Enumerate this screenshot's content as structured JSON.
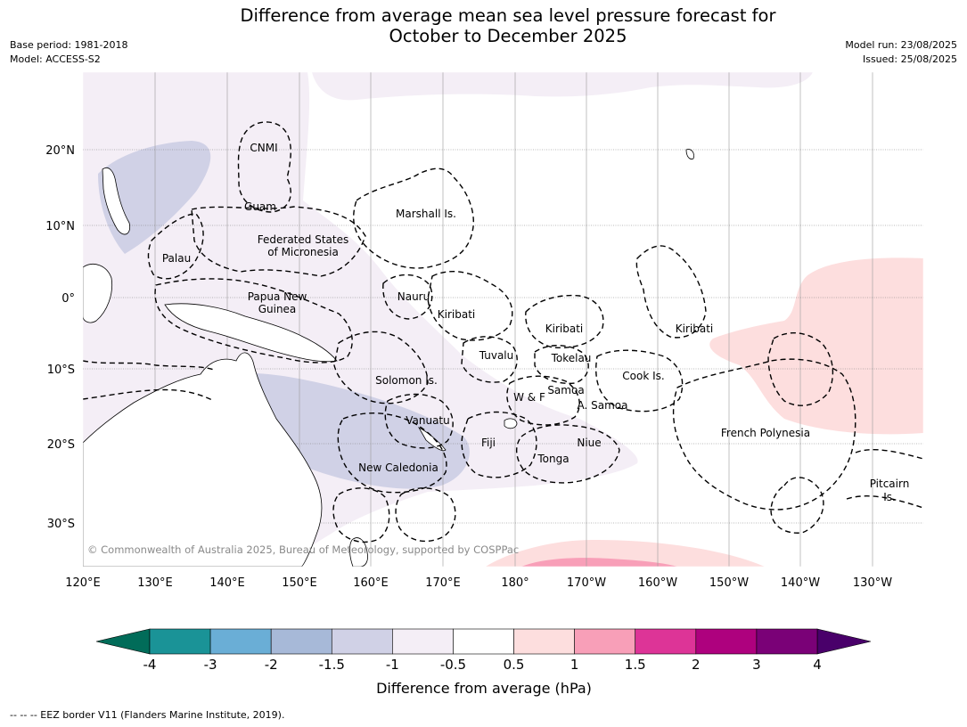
{
  "title": {
    "line1": "Difference from average mean sea level pressure forecast for",
    "line2": "October to December 2025"
  },
  "meta": {
    "base_period": "Base period: 1981-2018",
    "model": "Model: ACCESS-S2",
    "model_run": "Model run: 23/08/2025",
    "issued": "Issued: 25/08/2025"
  },
  "map": {
    "lon_labels": [
      "120°E",
      "130°E",
      "140°E",
      "150°E",
      "160°E",
      "170°E",
      "180°",
      "170°W",
      "160°W",
      "150°W",
      "140°W",
      "130°W"
    ],
    "lat_labels": [
      "20°N",
      "10°N",
      "0°",
      "10°S",
      "20°S",
      "30°S"
    ],
    "region_labels": [
      {
        "text": "CNMI"
      },
      {
        "text": "Guam"
      },
      {
        "text": "Marshall Is."
      },
      {
        "text": "Federated States"
      },
      {
        "text": "of Micronesia"
      },
      {
        "text": "Palau"
      },
      {
        "text": "Papua New"
      },
      {
        "text": "Guinea"
      },
      {
        "text": "Nauru"
      },
      {
        "text": "Kiribati"
      },
      {
        "text": "Kiribati"
      },
      {
        "text": "Kiribati"
      },
      {
        "text": "Tuvalu"
      },
      {
        "text": "Tokelau"
      },
      {
        "text": "Solomon Is."
      },
      {
        "text": "Cook Is."
      },
      {
        "text": "W & F"
      },
      {
        "text": "Samoa"
      },
      {
        "text": "A. Samoa"
      },
      {
        "text": "Vanuatu"
      },
      {
        "text": "Fiji"
      },
      {
        "text": "Niue"
      },
      {
        "text": "French Polynesia"
      },
      {
        "text": "Tonga"
      },
      {
        "text": "New Caledonia"
      },
      {
        "text": "Pitcairn"
      },
      {
        "text": "Is."
      }
    ],
    "copyright": "© Commonwealth of Australia 2025, Bureau of Meteorology, supported by COSPPac"
  },
  "colorbar": {
    "ticks": [
      "-4",
      "-3",
      "-2",
      "-1.5",
      "-1",
      "-0.5",
      "0.5",
      "1",
      "1.5",
      "2",
      "3",
      "4"
    ],
    "colors": [
      "#1a9397",
      "#6aaed6",
      "#a7b9d8",
      "#d0d1e6",
      "#f4eef6",
      "#ffffff",
      "#fddede",
      "#f89fb8",
      "#dd3497",
      "#ae017e",
      "#7a0177"
    ],
    "under_color": "#016c59",
    "over_color": "#49006a",
    "label": "Difference from average (hPa)"
  },
  "footer": "--  --  -- EEZ border V11 (Flanders Marine Institute, 2019)."
}
